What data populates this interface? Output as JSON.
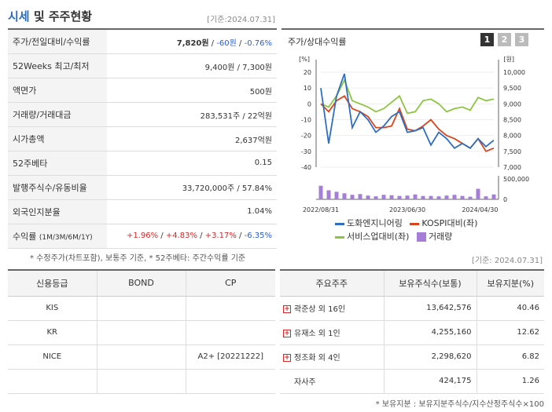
{
  "header": {
    "title_a": "시세",
    "title_b": "및 주주현황",
    "date": "[기준:2024.07.31]"
  },
  "info": [
    {
      "label": "주가/전일대비/수익률",
      "v1": "7,820원",
      "sep1": " / ",
      "v2": "-60원",
      "sep2": " / ",
      "v3": "-0.76%"
    },
    {
      "label": "52Weeks 최고/최저",
      "value": "9,400원 / 7,300원"
    },
    {
      "label": "액면가",
      "value": "500원"
    },
    {
      "label": "거래량/거래대금",
      "value": "283,531주 / 22억원"
    },
    {
      "label": "시가총액",
      "value": "2,637억원"
    },
    {
      "label": "52주베타",
      "value": "0.15"
    },
    {
      "label": "발행주식수/유동비율",
      "value": "33,720,000주 / 57.84%"
    },
    {
      "label": "외국인지분율",
      "value": "1.04%"
    },
    {
      "label": "수익률",
      "label_small": "(1M/3M/6M/1Y)",
      "r1": "+1.96%",
      "r2": "+4.83%",
      "r3": "+3.17%",
      "r4": "-6.35%"
    }
  ],
  "note": "* 수정주가(차트포함), 보통주 기준, * 52주베타: 주간수익률 기준",
  "chart": {
    "title": "주가/상대수익률",
    "tabs": [
      "1",
      "2",
      "3"
    ],
    "left_unit": "[%]",
    "right_unit": "[원]",
    "left_ticks": [
      "20",
      "10",
      "0",
      "-10",
      "-20",
      "-30",
      "-40"
    ],
    "right_ticks": [
      "10,000",
      "9,500",
      "9,000",
      "8,500",
      "8,000",
      "7,500",
      "7,000"
    ],
    "vol_ticks": [
      "500,000",
      "0"
    ],
    "x_labels": [
      "2022/08/31",
      "2023/06/30",
      "2024/04/30"
    ],
    "colors": {
      "company": "#2f6fc0",
      "kospi": "#d9451b",
      "sector": "#8cc63f",
      "volume": "#a67ed8"
    }
  },
  "chart_data": {
    "type": "line",
    "x_range": [
      "2022/08/31",
      "2024/07/31"
    ],
    "ylim_left": [
      -40,
      20
    ],
    "ylim_right": [
      7000,
      10000
    ],
    "ylim_volume": [
      0,
      500000
    ],
    "series": [
      {
        "name": "도화엔지니어링",
        "axis": "left",
        "values": [
          10,
          -25,
          5,
          19,
          -15,
          -5,
          -10,
          -18,
          -14,
          -8,
          -5,
          -18,
          -17,
          -15,
          -26,
          -18,
          -22,
          -28,
          -25,
          -28,
          -22,
          -27,
          -23
        ]
      },
      {
        "name": "KOSPI대비(좌)",
        "axis": "left",
        "values": [
          0,
          -5,
          2,
          5,
          -3,
          -5,
          -8,
          -15,
          -15,
          -14,
          -3,
          -16,
          -17,
          -14,
          -10,
          -16,
          -20,
          -22,
          -25,
          -28,
          -22,
          -30,
          -28
        ]
      },
      {
        "name": "서비스업대비(좌)",
        "axis": "left",
        "values": [
          0,
          -2,
          5,
          15,
          2,
          0,
          -2,
          -5,
          -3,
          1,
          5,
          -6,
          -5,
          2,
          3,
          0,
          -5,
          -3,
          -2,
          -4,
          4,
          2,
          3
        ]
      },
      {
        "name": "거래량",
        "axis": "volume",
        "values": [
          360000,
          240000,
          200000,
          160000,
          120000,
          140000,
          100000,
          80000,
          120000,
          110000,
          90000,
          100000,
          130000,
          90000,
          90000,
          80000,
          100000,
          120000,
          90000,
          70000,
          280000,
          80000,
          130000
        ]
      }
    ]
  },
  "legend": [
    {
      "label": "도화엔지니어링",
      "kind": "line",
      "color": "#2f6fc0"
    },
    {
      "label": "KOSPI대비(좌)",
      "kind": "line",
      "color": "#d9451b"
    },
    {
      "label": "서비스업대비(좌)",
      "kind": "line",
      "color": "#8cc63f"
    },
    {
      "label": "거래량",
      "kind": "box",
      "color": "#a67ed8"
    }
  ],
  "date2": "[기준: 2024.07.31]",
  "credit": {
    "headers": [
      "신용등급",
      "BOND",
      "CP"
    ],
    "rows": [
      [
        "KIS",
        "",
        ""
      ],
      [
        "KR",
        "",
        ""
      ],
      [
        "NICE",
        "",
        "A2+ [20221222]"
      ],
      [
        "",
        "",
        ""
      ]
    ]
  },
  "holders": {
    "headers": [
      "주요주주",
      "보유주식수(보통)",
      "보유지분(%)"
    ],
    "rows": [
      {
        "name": "곽준상 외 16인",
        "shares": "13,642,576",
        "pct": "40.46",
        "expand": true
      },
      {
        "name": "유재소 외 1인",
        "shares": "4,255,160",
        "pct": "12.62",
        "expand": true
      },
      {
        "name": "정조화 외 4인",
        "shares": "2,298,620",
        "pct": "6.82",
        "expand": true
      },
      {
        "name": "자사주",
        "shares": "424,175",
        "pct": "1.26",
        "expand": false
      }
    ],
    "footnote": "* 보유지분 : 보유지분주식수/지수산정주식수×100"
  }
}
